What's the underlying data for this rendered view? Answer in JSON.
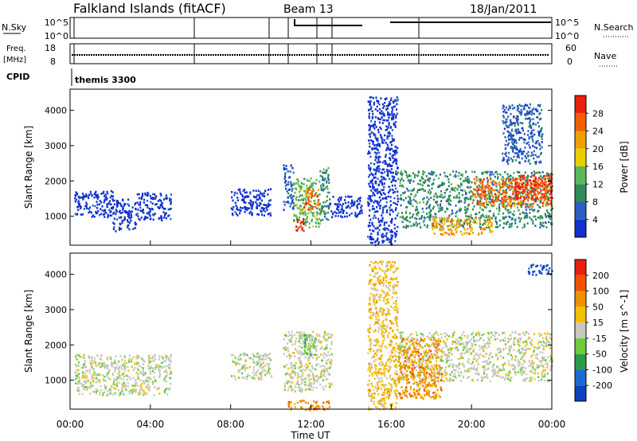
{
  "header": {
    "title": "Falkland Islands (fitACF)",
    "beam": "Beam 13",
    "date": "18/Jan/2011"
  },
  "strips": {
    "sky_label": "N.Sky",
    "search_label": "N.Search",
    "sky_ticks": [
      "10^5",
      "10^0"
    ],
    "freq_label": "Freq.",
    "freq_unit": "[MHz]",
    "freq_ticks": [
      "18",
      "8"
    ],
    "nave_label": "Nave",
    "nave_ticks": [
      "60",
      "0"
    ],
    "cpid_label": "CPID",
    "cpid_value": "themis 3300"
  },
  "colors": {
    "power": [
      "#1030d0",
      "#2a5fc0",
      "#2e8b57",
      "#5cb85c",
      "#e8d000",
      "#f0a000",
      "#f06000",
      "#e82010"
    ],
    "velocity": [
      "#1040c0",
      "#1c6ad0",
      "#2c9a4c",
      "#6ccc3a",
      "#c8c8c0",
      "#f4c000",
      "#f09000",
      "#f05000",
      "#e82010"
    ]
  },
  "chart_data": [
    {
      "type": "heatmap",
      "name": "power",
      "xlabel": "",
      "ylabel": "Slant Range [km]",
      "x_range_hours": [
        0,
        24
      ],
      "ylim": [
        180,
        4600
      ],
      "y_ticks": [
        "1000",
        "2000",
        "3000",
        "4000"
      ],
      "colorbar": {
        "label": "Power [dB]",
        "ticks": [
          "4",
          "8",
          "12",
          "16",
          "20",
          "24",
          "28"
        ]
      },
      "regions": [
        {
          "t0": 0.2,
          "t1": 2.1,
          "r0": 1000,
          "r1": 1750,
          "level": 0
        },
        {
          "t0": 2.1,
          "t1": 3.3,
          "r0": 600,
          "r1": 1500,
          "level": 0
        },
        {
          "t0": 3.3,
          "t1": 5.0,
          "r0": 900,
          "r1": 1700,
          "level": 0
        },
        {
          "t0": 8.0,
          "t1": 10.0,
          "r0": 1050,
          "r1": 1800,
          "level": 0
        },
        {
          "t0": 10.6,
          "t1": 11.1,
          "r0": 1200,
          "r1": 2500,
          "level": 1
        },
        {
          "t0": 11.1,
          "t1": 12.4,
          "r0": 700,
          "r1": 2100,
          "level": 3
        },
        {
          "t0": 11.2,
          "t1": 11.6,
          "r0": 600,
          "r1": 1000,
          "level": 7
        },
        {
          "t0": 11.6,
          "t1": 12.4,
          "r0": 1200,
          "r1": 1800,
          "level": 6
        },
        {
          "t0": 12.4,
          "t1": 12.9,
          "r0": 900,
          "r1": 2400,
          "level": 2
        },
        {
          "t0": 12.9,
          "t1": 14.5,
          "r0": 1000,
          "r1": 1600,
          "level": 0
        },
        {
          "t0": 14.8,
          "t1": 16.3,
          "r0": 200,
          "r1": 4400,
          "level": 0
        },
        {
          "t0": 16.3,
          "t1": 24.0,
          "r0": 700,
          "r1": 2300,
          "level": 2
        },
        {
          "t0": 18.0,
          "t1": 21.0,
          "r0": 500,
          "r1": 1000,
          "level": 5
        },
        {
          "t0": 20.0,
          "t1": 24.0,
          "r0": 1300,
          "r1": 2100,
          "level": 6
        },
        {
          "t0": 22.0,
          "t1": 24.0,
          "r0": 1500,
          "r1": 2200,
          "level": 7
        },
        {
          "t0": 21.5,
          "t1": 23.5,
          "r0": 2500,
          "r1": 4200,
          "level": 1
        }
      ]
    },
    {
      "type": "heatmap",
      "name": "velocity",
      "xlabel": "Time UT",
      "ylabel": "Slant Range [km]",
      "x_range_hours": [
        0,
        24
      ],
      "x_ticks": [
        "00:00",
        "04:00",
        "08:00",
        "12:00",
        "16:00",
        "20:00",
        "00:00"
      ],
      "ylim": [
        180,
        4600
      ],
      "y_ticks": [
        "1000",
        "2000",
        "3000",
        "4000"
      ],
      "colorbar": {
        "label": "Velocity [m s^-1]",
        "ticks": [
          "200",
          "100",
          "50",
          "15",
          "-15",
          "-50",
          "-100",
          "-200"
        ]
      },
      "regions": [
        {
          "t0": 0.2,
          "t1": 5.0,
          "r0": 600,
          "r1": 1750,
          "level": 4
        },
        {
          "t0": 8.0,
          "t1": 10.0,
          "r0": 1050,
          "r1": 1800,
          "level": 4
        },
        {
          "t0": 10.6,
          "t1": 13.0,
          "r0": 700,
          "r1": 2400,
          "level": 4
        },
        {
          "t0": 11.6,
          "t1": 12.2,
          "r0": 1700,
          "r1": 2300,
          "level": 3
        },
        {
          "t0": 10.8,
          "t1": 13.0,
          "r0": 180,
          "r1": 450,
          "level": 6
        },
        {
          "t0": 14.8,
          "t1": 16.3,
          "r0": 200,
          "r1": 4400,
          "level": 5
        },
        {
          "t0": 16.3,
          "t1": 24.0,
          "r0": 1000,
          "r1": 2400,
          "level": 4
        },
        {
          "t0": 16.3,
          "t1": 18.5,
          "r0": 500,
          "r1": 2200,
          "level": 6
        },
        {
          "t0": 22.8,
          "t1": 24.0,
          "r0": 4000,
          "r1": 4300,
          "level": 0
        }
      ]
    }
  ]
}
